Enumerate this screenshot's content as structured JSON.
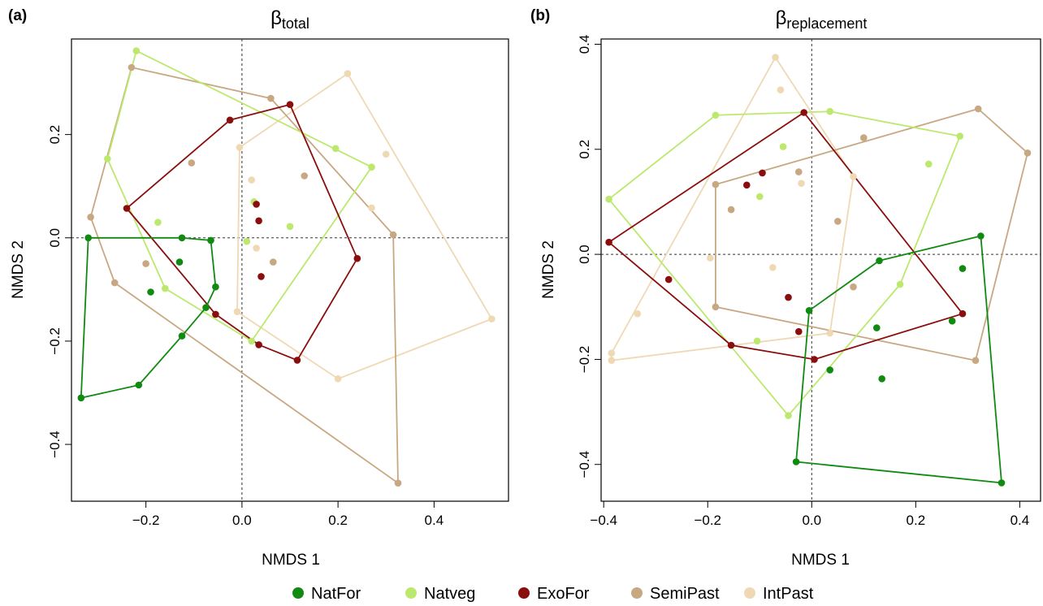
{
  "colors": {
    "NatFor": "#118a11",
    "Natveg": "#bde86e",
    "ExoFor": "#8b0e0e",
    "SemiPast": "#c8a882",
    "IntPast": "#efd9b4"
  },
  "legend": {
    "entries": [
      "NatFor",
      "Natveg",
      "ExoFor",
      "SemiPast",
      "IntPast"
    ]
  },
  "chart_data": [
    {
      "type": "scatter",
      "panel_label": "(a)",
      "title_main": "β",
      "title_sub": "total",
      "xlabel": "NMDS 1",
      "ylabel": "NMDS 2",
      "xlim": [
        -0.355,
        0.555
      ],
      "ylim": [
        -0.51,
        0.385
      ],
      "xticks": [
        -0.2,
        0.0,
        0.2,
        0.4
      ],
      "yticks": [
        -0.4,
        -0.2,
        0.0,
        0.2
      ],
      "xtick_labels": [
        "−0.2",
        "0.0",
        "0.2",
        "0.4"
      ],
      "ytick_labels": [
        "−0.4",
        "−0.2",
        "0.0",
        "0.2"
      ],
      "reference_lines": {
        "x": 0,
        "y": 0
      },
      "series": [
        {
          "name": "NatFor",
          "hull": [
            [
              -0.335,
              -0.31
            ],
            [
              -0.32,
              0.0
            ],
            [
              -0.125,
              0.0
            ],
            [
              -0.065,
              -0.005
            ],
            [
              -0.055,
              -0.095
            ],
            [
              -0.075,
              -0.135
            ],
            [
              -0.125,
              -0.19
            ],
            [
              -0.215,
              -0.285
            ]
          ],
          "points": [
            [
              -0.335,
              -0.31
            ],
            [
              -0.32,
              0.0
            ],
            [
              -0.125,
              0.0
            ],
            [
              -0.065,
              -0.005
            ],
            [
              -0.055,
              -0.095
            ],
            [
              -0.075,
              -0.135
            ],
            [
              -0.125,
              -0.19
            ],
            [
              -0.215,
              -0.285
            ],
            [
              -0.13,
              -0.047
            ],
            [
              -0.19,
              -0.105
            ]
          ]
        },
        {
          "name": "Natveg",
          "hull": [
            [
              -0.22,
              0.362
            ],
            [
              0.27,
              0.137
            ],
            [
              0.02,
              -0.2
            ],
            [
              -0.16,
              -0.098
            ],
            [
              -0.28,
              0.153
            ]
          ],
          "points": [
            [
              -0.22,
              0.362
            ],
            [
              0.27,
              0.137
            ],
            [
              0.02,
              -0.2
            ],
            [
              -0.16,
              -0.098
            ],
            [
              -0.28,
              0.153
            ],
            [
              0.195,
              0.173
            ],
            [
              -0.175,
              0.03
            ],
            [
              0.1,
              0.022
            ],
            [
              0.01,
              -0.007
            ],
            [
              0.025,
              0.07
            ]
          ]
        },
        {
          "name": "ExoFor",
          "hull": [
            [
              -0.24,
              0.057
            ],
            [
              -0.025,
              0.228
            ],
            [
              0.1,
              0.258
            ],
            [
              0.24,
              -0.04
            ],
            [
              0.115,
              -0.237
            ],
            [
              0.035,
              -0.207
            ],
            [
              -0.055,
              -0.148
            ]
          ],
          "points": [
            [
              -0.24,
              0.057
            ],
            [
              -0.025,
              0.228
            ],
            [
              0.1,
              0.258
            ],
            [
              0.24,
              -0.04
            ],
            [
              0.115,
              -0.237
            ],
            [
              0.035,
              -0.207
            ],
            [
              -0.055,
              -0.148
            ],
            [
              0.03,
              0.065
            ],
            [
              0.035,
              0.033
            ],
            [
              0.04,
              -0.075
            ]
          ]
        },
        {
          "name": "SemiPast",
          "hull": [
            [
              -0.23,
              0.33
            ],
            [
              0.06,
              0.27
            ],
            [
              0.315,
              0.006
            ],
            [
              0.325,
              -0.475
            ],
            [
              -0.265,
              -0.087
            ],
            [
              -0.315,
              0.04
            ]
          ],
          "points": [
            [
              -0.23,
              0.33
            ],
            [
              0.06,
              0.27
            ],
            [
              0.315,
              0.006
            ],
            [
              0.325,
              -0.475
            ],
            [
              -0.265,
              -0.087
            ],
            [
              -0.315,
              0.04
            ],
            [
              -0.105,
              0.145
            ],
            [
              0.13,
              0.12
            ],
            [
              -0.2,
              -0.05
            ],
            [
              0.065,
              -0.047
            ]
          ]
        },
        {
          "name": "IntPast",
          "hull": [
            [
              -0.005,
              0.175
            ],
            [
              0.22,
              0.318
            ],
            [
              0.52,
              -0.157
            ],
            [
              0.2,
              -0.273
            ],
            [
              -0.01,
              -0.143
            ]
          ],
          "points": [
            [
              -0.005,
              0.175
            ],
            [
              0.22,
              0.318
            ],
            [
              0.52,
              -0.157
            ],
            [
              0.2,
              -0.273
            ],
            [
              -0.01,
              -0.143
            ],
            [
              0.3,
              0.162
            ],
            [
              0.27,
              0.058
            ],
            [
              0.02,
              0.112
            ],
            [
              0.03,
              -0.02
            ]
          ]
        }
      ]
    },
    {
      "type": "scatter",
      "panel_label": "(b)",
      "title_main": "β",
      "title_sub": "replacement",
      "xlabel": "NMDS 1",
      "ylabel": "NMDS 2",
      "xlim": [
        -0.405,
        0.44
      ],
      "ylim": [
        -0.47,
        0.41
      ],
      "xticks": [
        -0.4,
        -0.2,
        0.0,
        0.2,
        0.4
      ],
      "yticks": [
        -0.4,
        -0.2,
        0.0,
        0.2,
        0.4
      ],
      "xtick_labels": [
        "−0.4",
        "−0.2",
        "0.0",
        "0.2",
        "0.4"
      ],
      "ytick_labels": [
        "−0.4",
        "−0.2",
        "0.0",
        "0.2",
        "0.4"
      ],
      "reference_lines": {
        "x": 0,
        "y": 0
      },
      "series": [
        {
          "name": "NatFor",
          "hull": [
            [
              -0.03,
              -0.395
            ],
            [
              -0.005,
              -0.107
            ],
            [
              0.13,
              -0.012
            ],
            [
              0.325,
              0.035
            ],
            [
              0.365,
              -0.435
            ]
          ],
          "points": [
            [
              -0.03,
              -0.395
            ],
            [
              -0.005,
              -0.107
            ],
            [
              0.13,
              -0.012
            ],
            [
              0.325,
              0.035
            ],
            [
              0.365,
              -0.435
            ],
            [
              0.29,
              -0.027
            ],
            [
              0.27,
              -0.127
            ],
            [
              0.125,
              -0.14
            ],
            [
              0.135,
              -0.237
            ],
            [
              0.035,
              -0.22
            ]
          ]
        },
        {
          "name": "Natveg",
          "hull": [
            [
              -0.39,
              0.105
            ],
            [
              -0.185,
              0.265
            ],
            [
              0.035,
              0.272
            ],
            [
              0.285,
              0.225
            ],
            [
              0.17,
              -0.057
            ],
            [
              -0.045,
              -0.307
            ]
          ],
          "points": [
            [
              -0.39,
              0.105
            ],
            [
              -0.185,
              0.265
            ],
            [
              0.035,
              0.272
            ],
            [
              0.285,
              0.225
            ],
            [
              0.17,
              -0.057
            ],
            [
              -0.045,
              -0.307
            ],
            [
              -0.105,
              -0.165
            ],
            [
              0.225,
              0.172
            ],
            [
              -0.055,
              0.205
            ],
            [
              -0.1,
              0.11
            ]
          ]
        },
        {
          "name": "ExoFor",
          "hull": [
            [
              -0.39,
              0.023
            ],
            [
              -0.015,
              0.27
            ],
            [
              0.29,
              -0.113
            ],
            [
              0.005,
              -0.2
            ],
            [
              -0.155,
              -0.173
            ]
          ],
          "points": [
            [
              -0.39,
              0.023
            ],
            [
              -0.015,
              0.27
            ],
            [
              0.29,
              -0.113
            ],
            [
              0.005,
              -0.2
            ],
            [
              -0.155,
              -0.173
            ],
            [
              -0.275,
              -0.048
            ],
            [
              -0.125,
              0.132
            ],
            [
              -0.095,
              0.155
            ],
            [
              -0.045,
              -0.082
            ],
            [
              -0.025,
              -0.147
            ]
          ]
        },
        {
          "name": "SemiPast",
          "hull": [
            [
              -0.185,
              0.133
            ],
            [
              0.32,
              0.277
            ],
            [
              0.415,
              0.193
            ],
            [
              0.315,
              -0.202
            ],
            [
              -0.185,
              -0.1
            ]
          ],
          "points": [
            [
              -0.185,
              0.133
            ],
            [
              0.32,
              0.277
            ],
            [
              0.415,
              0.193
            ],
            [
              0.315,
              -0.202
            ],
            [
              -0.185,
              -0.1
            ],
            [
              0.1,
              0.222
            ],
            [
              -0.155,
              0.085
            ],
            [
              -0.025,
              0.157
            ],
            [
              0.05,
              0.063
            ],
            [
              0.08,
              -0.062
            ]
          ]
        },
        {
          "name": "IntPast",
          "hull": [
            [
              -0.385,
              -0.202
            ],
            [
              -0.385,
              -0.188
            ],
            [
              -0.07,
              0.375
            ],
            [
              0.08,
              0.148
            ],
            [
              0.035,
              -0.15
            ]
          ],
          "points": [
            [
              -0.385,
              -0.202
            ],
            [
              -0.385,
              -0.188
            ],
            [
              -0.07,
              0.375
            ],
            [
              0.08,
              0.148
            ],
            [
              0.035,
              -0.15
            ],
            [
              -0.06,
              0.313
            ],
            [
              -0.02,
              0.135
            ],
            [
              -0.195,
              -0.007
            ],
            [
              -0.075,
              -0.025
            ],
            [
              -0.335,
              -0.113
            ]
          ]
        }
      ]
    }
  ]
}
